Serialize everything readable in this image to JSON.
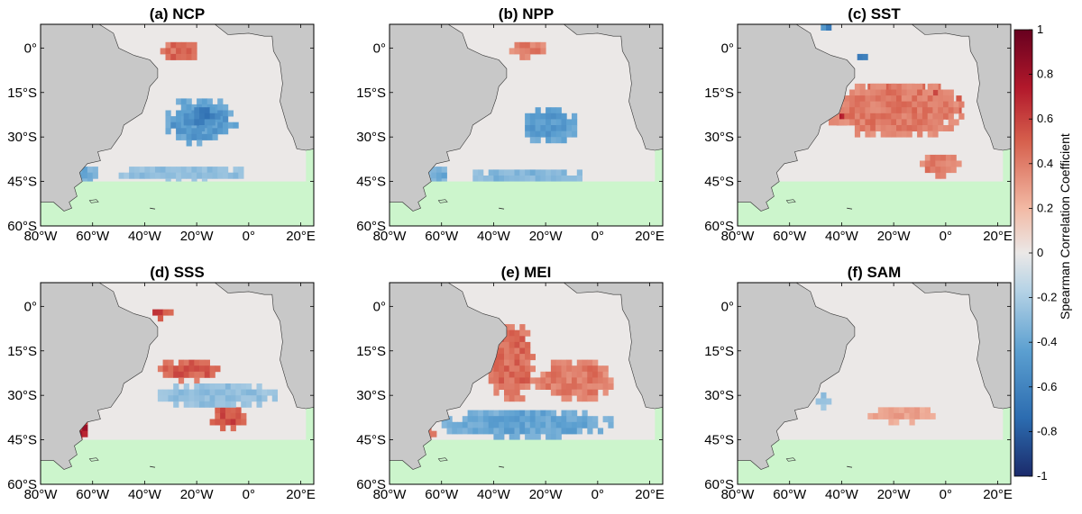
{
  "figure": {
    "colorbar": {
      "label": "Spearman Correlation Coefficient",
      "ticks": [
        "1",
        "0.8",
        "0.6",
        "0.4",
        "0.2",
        "0",
        "-0.2",
        "-0.4",
        "-0.6",
        "-0.8",
        "-1"
      ],
      "range": [
        -1,
        1
      ],
      "colors": [
        "#1b2b6b",
        "#2c6cb0",
        "#5b9fd0",
        "#b8d4e6",
        "#ebe8e7",
        "#f2b9a4",
        "#d6604d",
        "#b2182b",
        "#67001f"
      ]
    },
    "x_ticks": [
      "80°W",
      "60°W",
      "40°W",
      "20°W",
      "0°",
      "20°E"
    ],
    "y_ticks": [
      "0°",
      "15°S",
      "30°S",
      "45°S",
      "60°S"
    ],
    "colors": {
      "land": "#c8c8c8",
      "outside_domain": "#ccf5cc",
      "neutral_ocean": "#ebe8e7"
    },
    "panels": [
      {
        "title": "(a) NCP",
        "features": [
          {
            "lon": [
              -34,
              -18
            ],
            "lat": [
              -4,
              2
            ],
            "value": 0.5
          },
          {
            "lon": [
              -32,
              -5
            ],
            "lat": [
              -32,
              -17
            ],
            "value": -0.5
          },
          {
            "lon": [
              -25,
              -12
            ],
            "lat": [
              -27,
              -20
            ],
            "value": -0.65
          },
          {
            "lon": [
              -68,
              -58
            ],
            "lat": [
              -46,
              -40
            ],
            "value": -0.4
          },
          {
            "lon": [
              -50,
              0
            ],
            "lat": [
              -45,
              -40
            ],
            "value": -0.3
          }
        ]
      },
      {
        "title": "(b) NPP",
        "features": [
          {
            "lon": [
              -34,
              -20
            ],
            "lat": [
              -3,
              2
            ],
            "value": 0.45
          },
          {
            "lon": [
              -30,
              -8
            ],
            "lat": [
              -32,
              -20
            ],
            "value": -0.5
          },
          {
            "lon": [
              -68,
              -58
            ],
            "lat": [
              -46,
              -40
            ],
            "value": -0.4
          },
          {
            "lon": [
              -50,
              -5
            ],
            "lat": [
              -45,
              -41
            ],
            "value": -0.35
          }
        ]
      },
      {
        "title": "(c) SST",
        "features": [
          {
            "lon": [
              -44,
              -38
            ],
            "lat": [
              -26,
              -20
            ],
            "value": 0.75
          },
          {
            "lon": [
              -38,
              5
            ],
            "lat": [
              -25,
              -12
            ],
            "value": 0.6
          },
          {
            "lon": [
              -45,
              7
            ],
            "lat": [
              -30,
              -12
            ],
            "value": 0.45
          },
          {
            "lon": [
              -10,
              5
            ],
            "lat": [
              -43,
              -36
            ],
            "value": 0.45
          },
          {
            "lon": [
              -48,
              -44
            ],
            "lat": [
              8,
              5
            ],
            "value": -0.6
          },
          {
            "lon": [
              -34,
              -30
            ],
            "lat": [
              -2,
              -4
            ],
            "value": -0.6
          }
        ]
      },
      {
        "title": "(d) SSS",
        "features": [
          {
            "lon": [
              -35,
              -10
            ],
            "lat": [
              -25,
              -18
            ],
            "value": 0.55
          },
          {
            "lon": [
              -15,
              -1
            ],
            "lat": [
              -41,
              -34
            ],
            "value": 0.6
          },
          {
            "lon": [
              -37,
              -30
            ],
            "lat": [
              -4,
              -1
            ],
            "value": 0.6
          },
          {
            "lon": [
              -68,
              -62
            ],
            "lat": [
              -45,
              -38
            ],
            "value": 0.75
          },
          {
            "lon": [
              -35,
              10
            ],
            "lat": [
              -34,
              -26
            ],
            "value": -0.3
          }
        ]
      },
      {
        "title": "(e) MEI",
        "features": [
          {
            "lon": [
              -42,
              -24
            ],
            "lat": [
              -32,
              -6
            ],
            "value": 0.5
          },
          {
            "lon": [
              -24,
              5
            ],
            "lat": [
              -32,
              -18
            ],
            "value": 0.45
          },
          {
            "lon": [
              -60,
              5
            ],
            "lat": [
              -44,
              -35
            ],
            "value": -0.45
          },
          {
            "lon": [
              -68,
              -62
            ],
            "lat": [
              -45,
              -40
            ],
            "value": 0.5
          }
        ]
      },
      {
        "title": "(f) SAM",
        "features": [
          {
            "lon": [
              -30,
              -5
            ],
            "lat": [
              -39,
              -34
            ],
            "value": 0.3
          },
          {
            "lon": [
              -50,
              -45
            ],
            "lat": [
              -34,
              -29
            ],
            "value": -0.3
          }
        ]
      }
    ]
  }
}
